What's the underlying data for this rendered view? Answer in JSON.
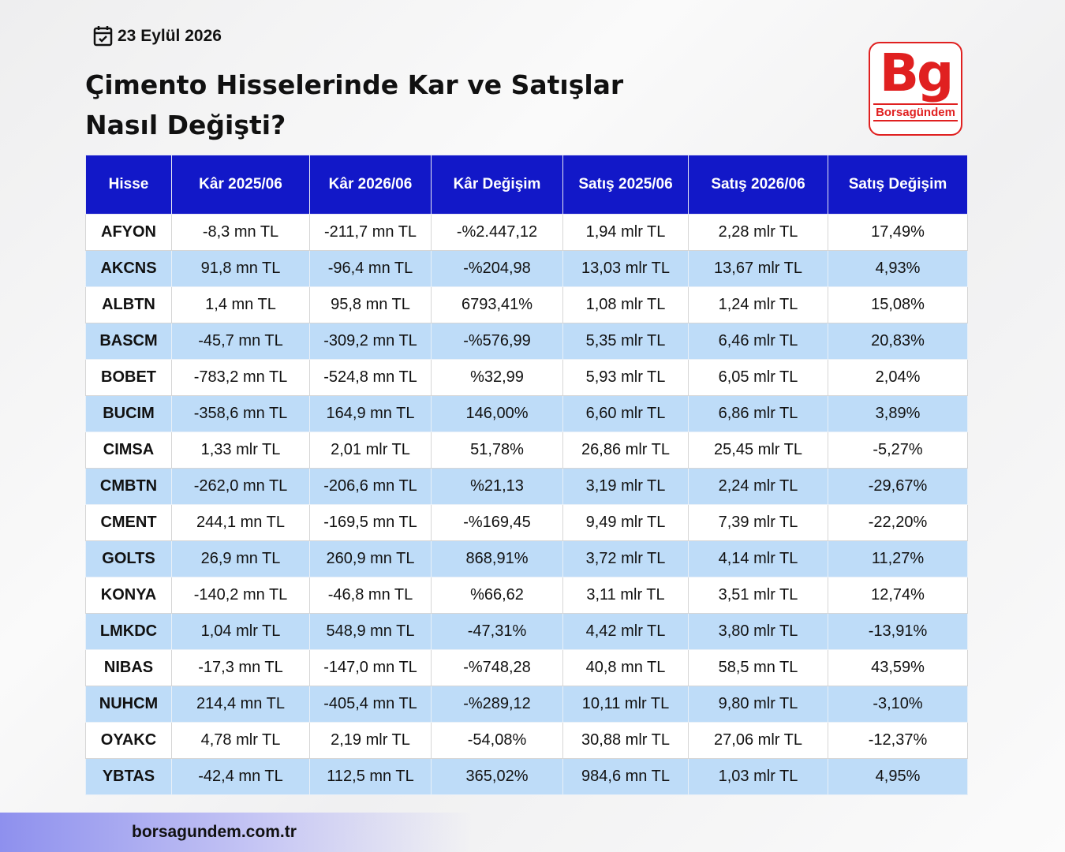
{
  "date": "23 Eylül 2026",
  "title": [
    "Çimento Hisselerinde Kar ve Satışlar",
    "Nasıl Değişti?"
  ],
  "logo": {
    "mark": "Bg",
    "name": "Borsagündem"
  },
  "footer": "borsagundem.com.tr",
  "table": {
    "headers": [
      "Hisse",
      "Kâr 2025/06",
      "Kâr 2026/06",
      "Kâr Değişim",
      "Satış 2025/06",
      "Satış 2026/06",
      "Satış Değişim"
    ],
    "rows": [
      [
        "AFYON",
        "-8,3 mn TL",
        "-211,7 mn TL",
        "-%2.447,12",
        "1,94 mlr TL",
        "2,28 mlr TL",
        "17,49%"
      ],
      [
        "AKCNS",
        "91,8 mn TL",
        "-96,4 mn TL",
        "-%204,98",
        "13,03 mlr TL",
        "13,67 mlr TL",
        "4,93%"
      ],
      [
        "ALBTN",
        "1,4 mn TL",
        "95,8 mn TL",
        "6793,41%",
        "1,08 mlr TL",
        "1,24 mlr TL",
        "15,08%"
      ],
      [
        "BASCM",
        "-45,7 mn TL",
        "-309,2 mn TL",
        "-%576,99",
        "5,35 mlr TL",
        "6,46 mlr TL",
        "20,83%"
      ],
      [
        "BOBET",
        "-783,2 mn TL",
        "-524,8 mn TL",
        "%32,99",
        "5,93 mlr TL",
        "6,05 mlr TL",
        "2,04%"
      ],
      [
        "BUCIM",
        "-358,6 mn TL",
        "164,9 mn TL",
        "146,00%",
        "6,60 mlr TL",
        "6,86 mlr TL",
        "3,89%"
      ],
      [
        "CIMSA",
        "1,33 mlr TL",
        "2,01 mlr TL",
        "51,78%",
        "26,86 mlr TL",
        "25,45 mlr TL",
        "-5,27%"
      ],
      [
        "CMBTN",
        "-262,0 mn TL",
        "-206,6 mn TL",
        "%21,13",
        "3,19 mlr TL",
        "2,24 mlr TL",
        "-29,67%"
      ],
      [
        "CMENT",
        "244,1 mn TL",
        "-169,5 mn TL",
        "-%169,45",
        "9,49 mlr TL",
        "7,39 mlr TL",
        "-22,20%"
      ],
      [
        "GOLTS",
        "26,9 mn TL",
        "260,9 mn TL",
        "868,91%",
        "3,72 mlr TL",
        "4,14 mlr TL",
        "11,27%"
      ],
      [
        "KONYA",
        "-140,2 mn TL",
        "-46,8 mn TL",
        "%66,62",
        "3,11 mlr TL",
        "3,51 mlr TL",
        "12,74%"
      ],
      [
        "LMKDC",
        "1,04 mlr TL",
        "548,9 mn TL",
        "-47,31%",
        "4,42 mlr TL",
        "3,80 mlr TL",
        "-13,91%"
      ],
      [
        "NIBAS",
        "-17,3 mn TL",
        "-147,0 mn TL",
        "-%748,28",
        "40,8 mn TL",
        "58,5 mn TL",
        "43,59%"
      ],
      [
        "NUHCM",
        "214,4 mn TL",
        "-405,4 mn TL",
        "-%289,12",
        "10,11 mlr TL",
        "9,80 mlr TL",
        "-3,10%"
      ],
      [
        "OYAKC",
        "4,78 mlr TL",
        "2,19 mlr TL",
        "-54,08%",
        "30,88 mlr TL",
        "27,06 mlr TL",
        "-12,37%"
      ],
      [
        "YBTAS",
        "-42,4 mn TL",
        "112,5 mn TL",
        "365,02%",
        "984,6 mn TL",
        "1,03 mlr TL",
        "4,95%"
      ]
    ]
  }
}
